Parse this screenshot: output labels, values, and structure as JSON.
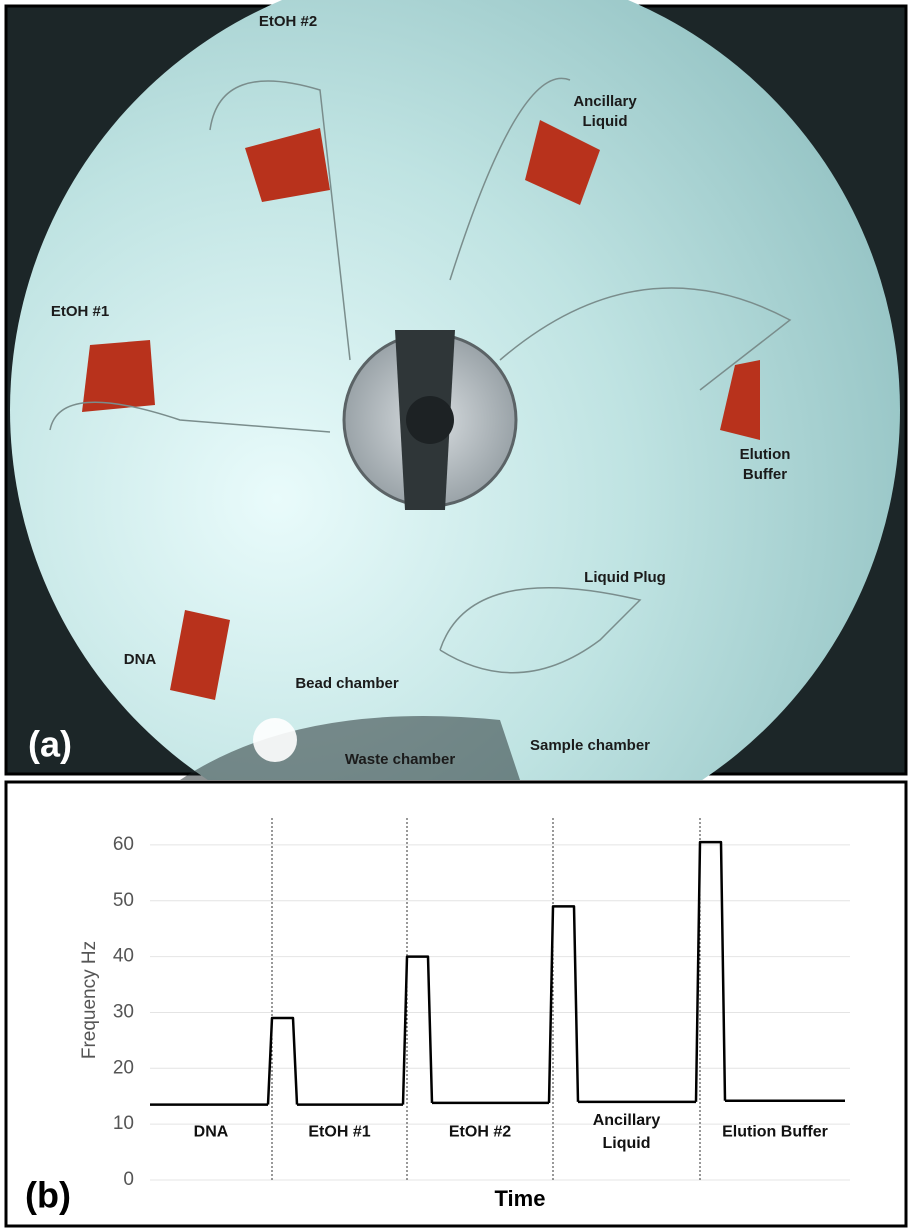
{
  "photo": {
    "panel_label": "(a)",
    "labels": [
      "EtOH #2",
      "Ancillary Liquid",
      "EtOH #1",
      "Elution Buffer",
      "Liquid Plug",
      "DNA",
      "Bead chamber",
      "Waste chamber",
      "Sample chamber"
    ]
  },
  "chart_data": {
    "type": "line",
    "panel_label": "(b)",
    "xlabel": "Time",
    "ylabel": "Frequency Hz",
    "categories": [
      "DNA",
      "EtOH #1",
      "EtOH #2",
      "Ancillary Liquid",
      "Elution Buffer"
    ],
    "values": [
      13.5,
      13.5,
      13.8,
      14,
      14.2
    ],
    "peaks": [
      29,
      40,
      49,
      60.5
    ],
    "color": "#000000",
    "ylim": [
      0,
      65
    ],
    "yticks": [
      0,
      10,
      20,
      30,
      40,
      50,
      60
    ],
    "grid": true
  }
}
